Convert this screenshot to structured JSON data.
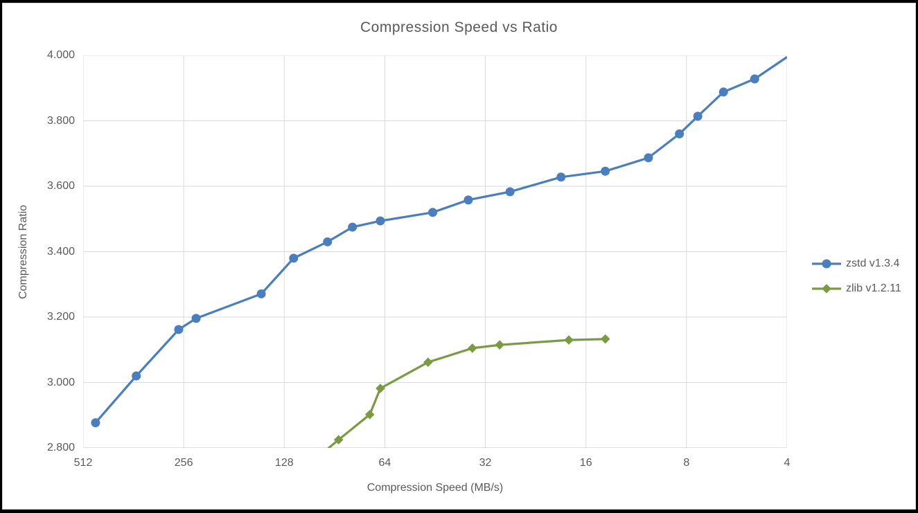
{
  "chart_data": {
    "type": "line",
    "title": "Compression Speed vs Ratio",
    "xlabel": "Compression Speed (MB/s)",
    "ylabel": "Compression Ratio",
    "x_scale": "log2_reversed",
    "x_range": [
      512,
      4
    ],
    "y_range": [
      2.8,
      4.0
    ],
    "grid": true,
    "legend_position": "right",
    "x_ticks": [
      512,
      256,
      128,
      64,
      32,
      16,
      8,
      4
    ],
    "x_tick_labels": [
      "512",
      "256",
      "128",
      "64",
      "32",
      "16",
      "8",
      "4"
    ],
    "y_ticks": [
      4.0,
      3.8,
      3.6,
      3.4,
      3.2,
      3.0,
      2.8
    ],
    "y_tick_labels": [
      "4.000",
      "3.800",
      "3.600",
      "3.400",
      "3.200",
      "3.000",
      "2.800"
    ],
    "series": [
      {
        "name": "zstd v1.3.4",
        "color": "#4A7EBD",
        "marker": "circle",
        "points": [
          {
            "speed": 470,
            "ratio": 2.877,
            "marker": true
          },
          {
            "speed": 355,
            "ratio": 3.02,
            "marker": true
          },
          {
            "speed": 265,
            "ratio": 3.162,
            "marker": true
          },
          {
            "speed": 235,
            "ratio": 3.196,
            "marker": true
          },
          {
            "speed": 150,
            "ratio": 3.271,
            "marker": true
          },
          {
            "speed": 120,
            "ratio": 3.38,
            "marker": true
          },
          {
            "speed": 95,
            "ratio": 3.43,
            "marker": true
          },
          {
            "speed": 80,
            "ratio": 3.475,
            "marker": true
          },
          {
            "speed": 66,
            "ratio": 3.494,
            "marker": true
          },
          {
            "speed": 46,
            "ratio": 3.52,
            "marker": true
          },
          {
            "speed": 36,
            "ratio": 3.558,
            "marker": true
          },
          {
            "speed": 27,
            "ratio": 3.583,
            "marker": true
          },
          {
            "speed": 19,
            "ratio": 3.628,
            "marker": true
          },
          {
            "speed": 14,
            "ratio": 3.646,
            "marker": true
          },
          {
            "speed": 10.4,
            "ratio": 3.687,
            "marker": true
          },
          {
            "speed": 8.4,
            "ratio": 3.76,
            "marker": true
          },
          {
            "speed": 7.4,
            "ratio": 3.814,
            "marker": true
          },
          {
            "speed": 6.2,
            "ratio": 3.888,
            "marker": true
          },
          {
            "speed": 5.0,
            "ratio": 3.928,
            "marker": true
          },
          {
            "speed": 4.0,
            "ratio": 3.995,
            "marker": false
          }
        ]
      },
      {
        "name": "zlib v1.2.11",
        "color": "#7A9A43",
        "marker": "diamond",
        "points": [
          {
            "speed": 110,
            "ratio": 2.743,
            "marker": false
          },
          {
            "speed": 88,
            "ratio": 2.825,
            "marker": true
          },
          {
            "speed": 71,
            "ratio": 2.902,
            "marker": true
          },
          {
            "speed": 66,
            "ratio": 2.982,
            "marker": true
          },
          {
            "speed": 47.5,
            "ratio": 3.062,
            "marker": true
          },
          {
            "speed": 35,
            "ratio": 3.105,
            "marker": true
          },
          {
            "speed": 29,
            "ratio": 3.115,
            "marker": true
          },
          {
            "speed": 18,
            "ratio": 3.13,
            "marker": true
          },
          {
            "speed": 14,
            "ratio": 3.133,
            "marker": true
          }
        ]
      }
    ],
    "style": {
      "grid_color": "#D9D9D9",
      "axis_line_color": "#C0C0C0",
      "text_color": "#595959",
      "background": "#FFFFFF",
      "frame_border_color": "#000000"
    }
  }
}
